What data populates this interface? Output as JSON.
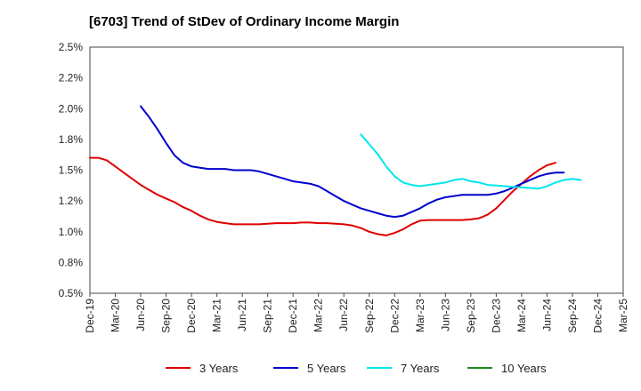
{
  "chart_data": {
    "type": "line",
    "title": "[6703]  Trend of StDev of Ordinary Income Margin",
    "xlabel": "",
    "ylabel": "",
    "x_ticks": [
      "Dec-19",
      "Mar-20",
      "Jun-20",
      "Sep-20",
      "Dec-20",
      "Mar-21",
      "Jun-21",
      "Sep-21",
      "Dec-21",
      "Mar-22",
      "Jun-22",
      "Sep-22",
      "Dec-22",
      "Mar-23",
      "Jun-23",
      "Sep-23",
      "Dec-23",
      "Mar-24",
      "Jun-24",
      "Sep-24",
      "Dec-24",
      "Mar-25"
    ],
    "y_ticks": [
      "0.5%",
      "0.8%",
      "1.0%",
      "1.2%",
      "1.5%",
      "1.8%",
      "2.0%",
      "2.2%",
      "2.5%"
    ],
    "ylim": [
      0.5,
      2.5
    ],
    "grid": true,
    "legend_position": "bottom",
    "series": [
      {
        "name": "3 Years",
        "color": "#dd0000",
        "values": [
          1.6,
          1.6,
          1.58,
          1.53,
          1.48,
          1.43,
          1.38,
          1.34,
          1.3,
          1.27,
          1.24,
          1.2,
          1.17,
          1.13,
          1.1,
          1.08,
          1.07,
          1.06,
          1.06,
          1.06,
          1.06,
          1.065,
          1.07,
          1.07,
          1.07,
          1.075,
          1.075,
          1.07,
          1.07,
          1.065,
          1.06,
          1.05,
          1.03,
          1.0,
          0.98,
          0.97,
          0.99,
          1.02,
          1.06,
          1.09,
          1.095,
          1.095,
          1.095,
          1.095,
          1.095,
          1.1,
          1.11,
          1.14,
          1.19,
          1.26,
          1.33,
          1.39,
          1.45,
          1.5,
          1.54,
          1.56
        ]
      },
      {
        "name": "5 Years",
        "color": "#0000cc",
        "values": [
          null,
          null,
          null,
          null,
          null,
          null,
          2.02,
          1.93,
          1.83,
          1.72,
          1.62,
          1.56,
          1.53,
          1.52,
          1.51,
          1.51,
          1.51,
          1.5,
          1.5,
          1.5,
          1.49,
          1.47,
          1.45,
          1.43,
          1.41,
          1.4,
          1.39,
          1.37,
          1.33,
          1.29,
          1.25,
          1.22,
          1.19,
          1.17,
          1.15,
          1.13,
          1.12,
          1.13,
          1.16,
          1.19,
          1.23,
          1.26,
          1.28,
          1.29,
          1.3,
          1.3,
          1.3,
          1.3,
          1.31,
          1.33,
          1.36,
          1.39,
          1.42,
          1.45,
          1.47,
          1.48,
          1.48
        ]
      },
      {
        "name": "7 Years",
        "color": "#00e5ee",
        "values": [
          null,
          null,
          null,
          null,
          null,
          null,
          null,
          null,
          null,
          null,
          null,
          null,
          null,
          null,
          null,
          null,
          null,
          null,
          null,
          null,
          null,
          null,
          null,
          null,
          null,
          null,
          null,
          null,
          null,
          null,
          null,
          null,
          1.79,
          1.71,
          1.63,
          1.53,
          1.45,
          1.4,
          1.38,
          1.37,
          1.38,
          1.39,
          1.4,
          1.42,
          1.43,
          1.41,
          1.4,
          1.38,
          1.375,
          1.37,
          1.365,
          1.36,
          1.355,
          1.35,
          1.37,
          1.4,
          1.42,
          1.43,
          1.42
        ]
      },
      {
        "name": "10 Years",
        "color": "#228b22",
        "values": []
      }
    ]
  }
}
